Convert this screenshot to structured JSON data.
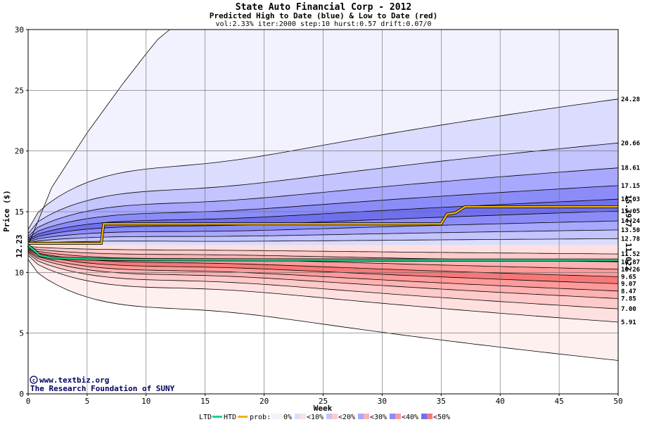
{
  "chart_data": {
    "type": "area",
    "title": "State Auto Financial Corp - 2012",
    "subtitle": "Predicted High to Date (blue) &  Low to Date (red)",
    "params": "vol:2.33% iter:2000 step:10 hurst:0.57 drift:0.07/0",
    "xlabel": "Week",
    "ylabel": "Price ($)",
    "xlim": [
      0,
      50
    ],
    "ylim": [
      0,
      30
    ],
    "x_ticks": [
      "0",
      "5",
      "10",
      "15",
      "20",
      "25",
      "30",
      "35",
      "40",
      "45",
      "50"
    ],
    "y_ticks": [
      "0",
      "5",
      "10",
      "15",
      "20",
      "25",
      "30"
    ],
    "grid": true,
    "start_price": 12.23,
    "start_label": "12.23",
    "htd_final_label": "15.3977",
    "ltd_final_label": "11.022",
    "right_labels": [
      "24.28",
      "20.66",
      "18.61",
      "17.15",
      "16.03",
      "15.05",
      "14.24",
      "13.50",
      "12.78",
      "11.52",
      "10.87",
      "10.26",
      "9.65",
      "9.07",
      "8.47",
      "7.85",
      "7.00",
      "5.91"
    ],
    "band_levels": {
      "high": [
        {
          "end": 24.28,
          "mid": 21.2,
          "prob": 0
        },
        {
          "end": 20.66,
          "mid": 18.7,
          "prob": 10
        },
        {
          "end": 18.61,
          "mid": 17.2,
          "prob": 20
        },
        {
          "end": 17.15,
          "mid": 16.15,
          "prob": 30
        },
        {
          "end": 16.03,
          "mid": 15.35,
          "prob": 40
        },
        {
          "end": 15.05,
          "mid": 14.7,
          "prob": 50
        },
        {
          "end": 14.24,
          "mid": 14.05,
          "prob": 40
        },
        {
          "end": 13.5,
          "mid": 13.45,
          "prob": 30
        },
        {
          "end": 12.78,
          "mid": 12.9,
          "prob": 20
        }
      ],
      "low": [
        {
          "end": 11.52,
          "mid": 11.7,
          "prob": 10
        },
        {
          "end": 10.87,
          "mid": 11.1,
          "prob": 20
        },
        {
          "end": 10.26,
          "mid": 10.55,
          "prob": 30
        },
        {
          "end": 9.65,
          "mid": 10.1,
          "prob": 40
        },
        {
          "end": 9.07,
          "mid": 9.6,
          "prob": 50
        },
        {
          "end": 8.47,
          "mid": 9.1,
          "prob": 40
        },
        {
          "end": 7.85,
          "mid": 8.6,
          "prob": 30
        },
        {
          "end": 7.0,
          "mid": 7.9,
          "prob": 20
        },
        {
          "end": 5.91,
          "mid": 6.9,
          "prob": 10
        },
        {
          "end": 2.75,
          "mid": 4.6,
          "prob": 0
        }
      ]
    },
    "outer_high_curve": {
      "x": [
        0,
        2,
        5,
        8,
        10,
        11,
        12
      ],
      "y": [
        12.23,
        17,
        21.5,
        25.5,
        28.0,
        29.2,
        30
      ]
    },
    "htd_series": {
      "name": "HTD",
      "x": [
        0,
        6.2,
        6.4,
        35,
        35.5,
        36.2,
        37,
        50
      ],
      "y": [
        12.4,
        12.4,
        14.0,
        14.0,
        14.8,
        14.9,
        15.4,
        15.4
      ]
    },
    "ltd_series": {
      "name": "LTD",
      "x": [
        0,
        1,
        2,
        5,
        10,
        20,
        30,
        40,
        50
      ],
      "y": [
        12.23,
        11.4,
        11.2,
        11.1,
        11.05,
        11.03,
        11.02,
        11.02,
        11.02
      ]
    },
    "legend": {
      "ltd": "LTD",
      "htd": "HTD",
      "prob_prefix": "prob:",
      "items": [
        "0%",
        "<10%",
        "<20%",
        "<30%",
        "<40%",
        "<50%"
      ]
    },
    "colors": {
      "high_bands": {
        "0": "#f2f2ff",
        "10": "#dcdcff",
        "20": "#c4c4ff",
        "30": "#a8a8ff",
        "40": "#8c8cf8",
        "50": "#7070ee"
      },
      "low_bands": {
        "0": "#fff0f0",
        "10": "#ffe0e0",
        "20": "#ffcaca",
        "30": "#ffb2b2",
        "40": "#ff9a9a",
        "50": "#f87878"
      },
      "htd_line": "#f0b400",
      "ltd_line": "#20d090",
      "start_label": "#008000",
      "htd_label": "#9a7000",
      "ltd_label": "#008060"
    }
  },
  "credits": {
    "line1": "www.textbiz.org",
    "line2": "The Research Foundation of SUNY"
  }
}
